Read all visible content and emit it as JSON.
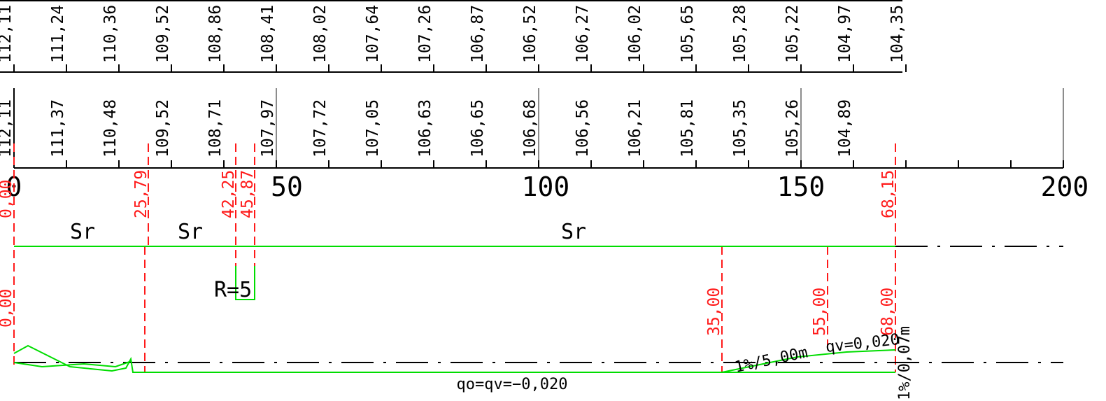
{
  "colors": {
    "ink": "#000000",
    "grid": "#8c8c8c",
    "station": "#ff1a1a",
    "design": "#00dd00",
    "background": "#ffffff"
  },
  "elevations_upper": [
    "112,11",
    "111,24",
    "110,36",
    "109,52",
    "108,86",
    "108,41",
    "108,02",
    "107,64",
    "107,26",
    "106,87",
    "106,52",
    "106,27",
    "106,02",
    "105,65",
    "105,28",
    "105,22",
    "104,97",
    "104,35"
  ],
  "elevations_lower": [
    "112,11",
    "111,37",
    "110,48",
    "109,52",
    "108,71",
    "107,97",
    "107,72",
    "107,05",
    "106,63",
    "106,65",
    "106,68",
    "106,56",
    "106,21",
    "105,81",
    "105,35",
    "105,26",
    "104,89"
  ],
  "scale_labels": [
    "0",
    "50",
    "100",
    "150",
    "200"
  ],
  "station_marks_top": [
    "0,00",
    "25,79",
    "42,25",
    "45,87",
    "68,15"
  ],
  "alignment_labels": [
    "Sr",
    "Sr",
    "Sr"
  ],
  "curve_label": "R=5",
  "station_marks_bottom": [
    "0,00",
    "35,00",
    "55,00",
    "68,00"
  ],
  "grade_labels": {
    "transition": "1%/5,00m",
    "qv_end": "qv=0,020",
    "main": "qo=qv=−0,020",
    "right_vertical": "1%/0,07m"
  }
}
